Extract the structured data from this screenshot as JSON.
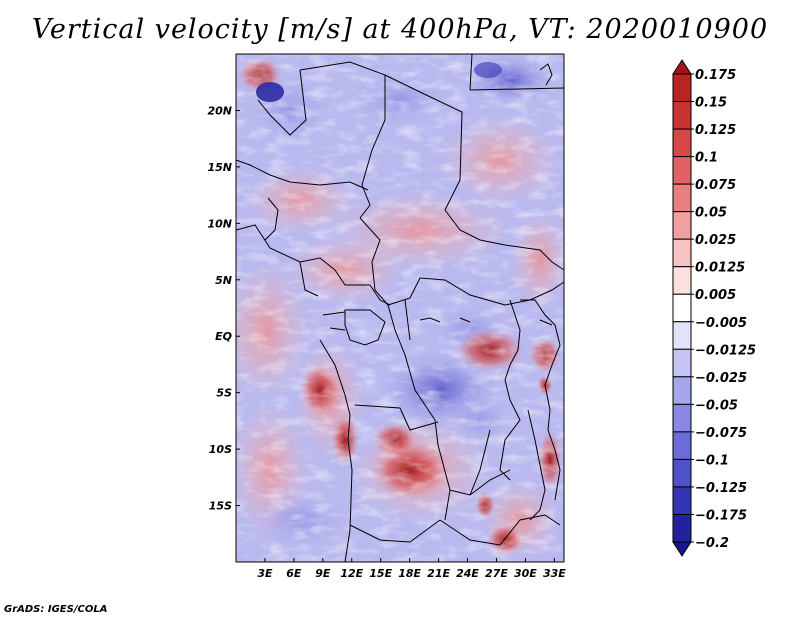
{
  "title": "Vertical velocity [m/s] at 400hPa, VT: 2020010900",
  "credit": "GrADS: IGES/COLA",
  "map": {
    "lat_range": [
      -20,
      25
    ],
    "lon_range": [
      0,
      34
    ],
    "lat_ticks": [
      {
        "value": 20,
        "label": "20N"
      },
      {
        "value": 15,
        "label": "15N"
      },
      {
        "value": 10,
        "label": "10N"
      },
      {
        "value": 5,
        "label": "5N"
      },
      {
        "value": 0,
        "label": "EQ"
      },
      {
        "value": -5,
        "label": "5S"
      },
      {
        "value": -10,
        "label": "10S"
      },
      {
        "value": -15,
        "label": "15S"
      }
    ],
    "lon_ticks": [
      {
        "value": 3,
        "label": "3E"
      },
      {
        "value": 6,
        "label": "6E"
      },
      {
        "value": 9,
        "label": "9E"
      },
      {
        "value": 12,
        "label": "12E"
      },
      {
        "value": 15,
        "label": "15E"
      },
      {
        "value": 18,
        "label": "18E"
      },
      {
        "value": 21,
        "label": "21E"
      },
      {
        "value": 24,
        "label": "24E"
      },
      {
        "value": 27,
        "label": "27E"
      },
      {
        "value": 30,
        "label": "30E"
      },
      {
        "value": 33,
        "label": "33E"
      }
    ]
  },
  "colorbar": {
    "levels": [
      "0.175",
      "0.15",
      "0.125",
      "0.1",
      "0.075",
      "0.05",
      "0.025",
      "0.0125",
      "0.005",
      "−0.005",
      "−0.0125",
      "−0.025",
      "−0.05",
      "−0.075",
      "−0.1",
      "−0.125",
      "−0.175",
      "−0.2"
    ],
    "colors": [
      "#a01616",
      "#b82424",
      "#c83434",
      "#d64848",
      "#e06262",
      "#e88080",
      "#f0a0a0",
      "#f6c2c2",
      "#fbe0e0",
      "#ffffff",
      "#e2e2fb",
      "#c4c4f3",
      "#a6a6ec",
      "#8888e2",
      "#6c6cd8",
      "#5050c8",
      "#3434b4",
      "#22229e",
      "#16168a"
    ]
  }
}
